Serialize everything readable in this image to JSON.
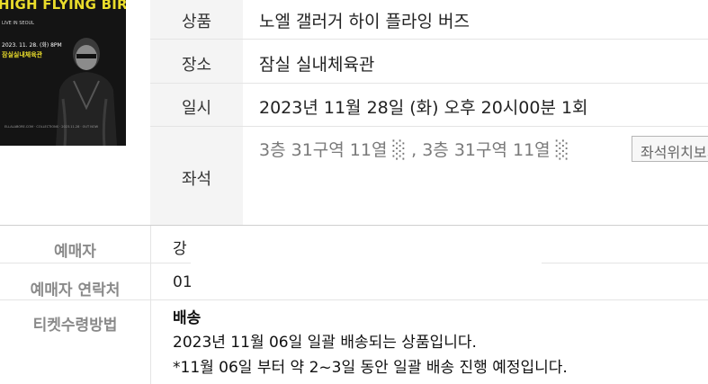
{
  "poster": {
    "title": "HIGH FLYING BIRDS",
    "subtitle": "LIVE IN SEOUL",
    "date": "2023. 11. 28. (화) 8PM",
    "venue": "잠실실내체육관",
    "footer": "ELLALABORE.COM  ·  COLLECTIONS  ·  2023.11.28  ·  OUT NOW"
  },
  "info": {
    "product_label": "상품",
    "product_value": "노엘 갤러거 하이 플라잉 버즈",
    "venue_label": "장소",
    "venue_value": "잠실 실내체육관",
    "datetime_label": "일시",
    "datetime_value": "2023년 11월 28일 (화) 오후 20시00분 1회",
    "seat_label": "좌석",
    "seat_value": "3층 31구역 11열 ░ , 3층 31구역 11열 ░",
    "seat_button": "좌석위치보기"
  },
  "booker": {
    "name_label": "예매자",
    "name_value": "강",
    "contact_label": "예매자 연락처",
    "contact_value": "01",
    "ticket_method_label": "티켓수령방법",
    "delivery_title": "배송",
    "delivery_line1": "2023년 11월 06일 일괄 배송되는 상품입니다.",
    "delivery_line2": "*11월 06일 부터 약 2~3일 동안 일괄 배송 진행 예정입니다."
  }
}
